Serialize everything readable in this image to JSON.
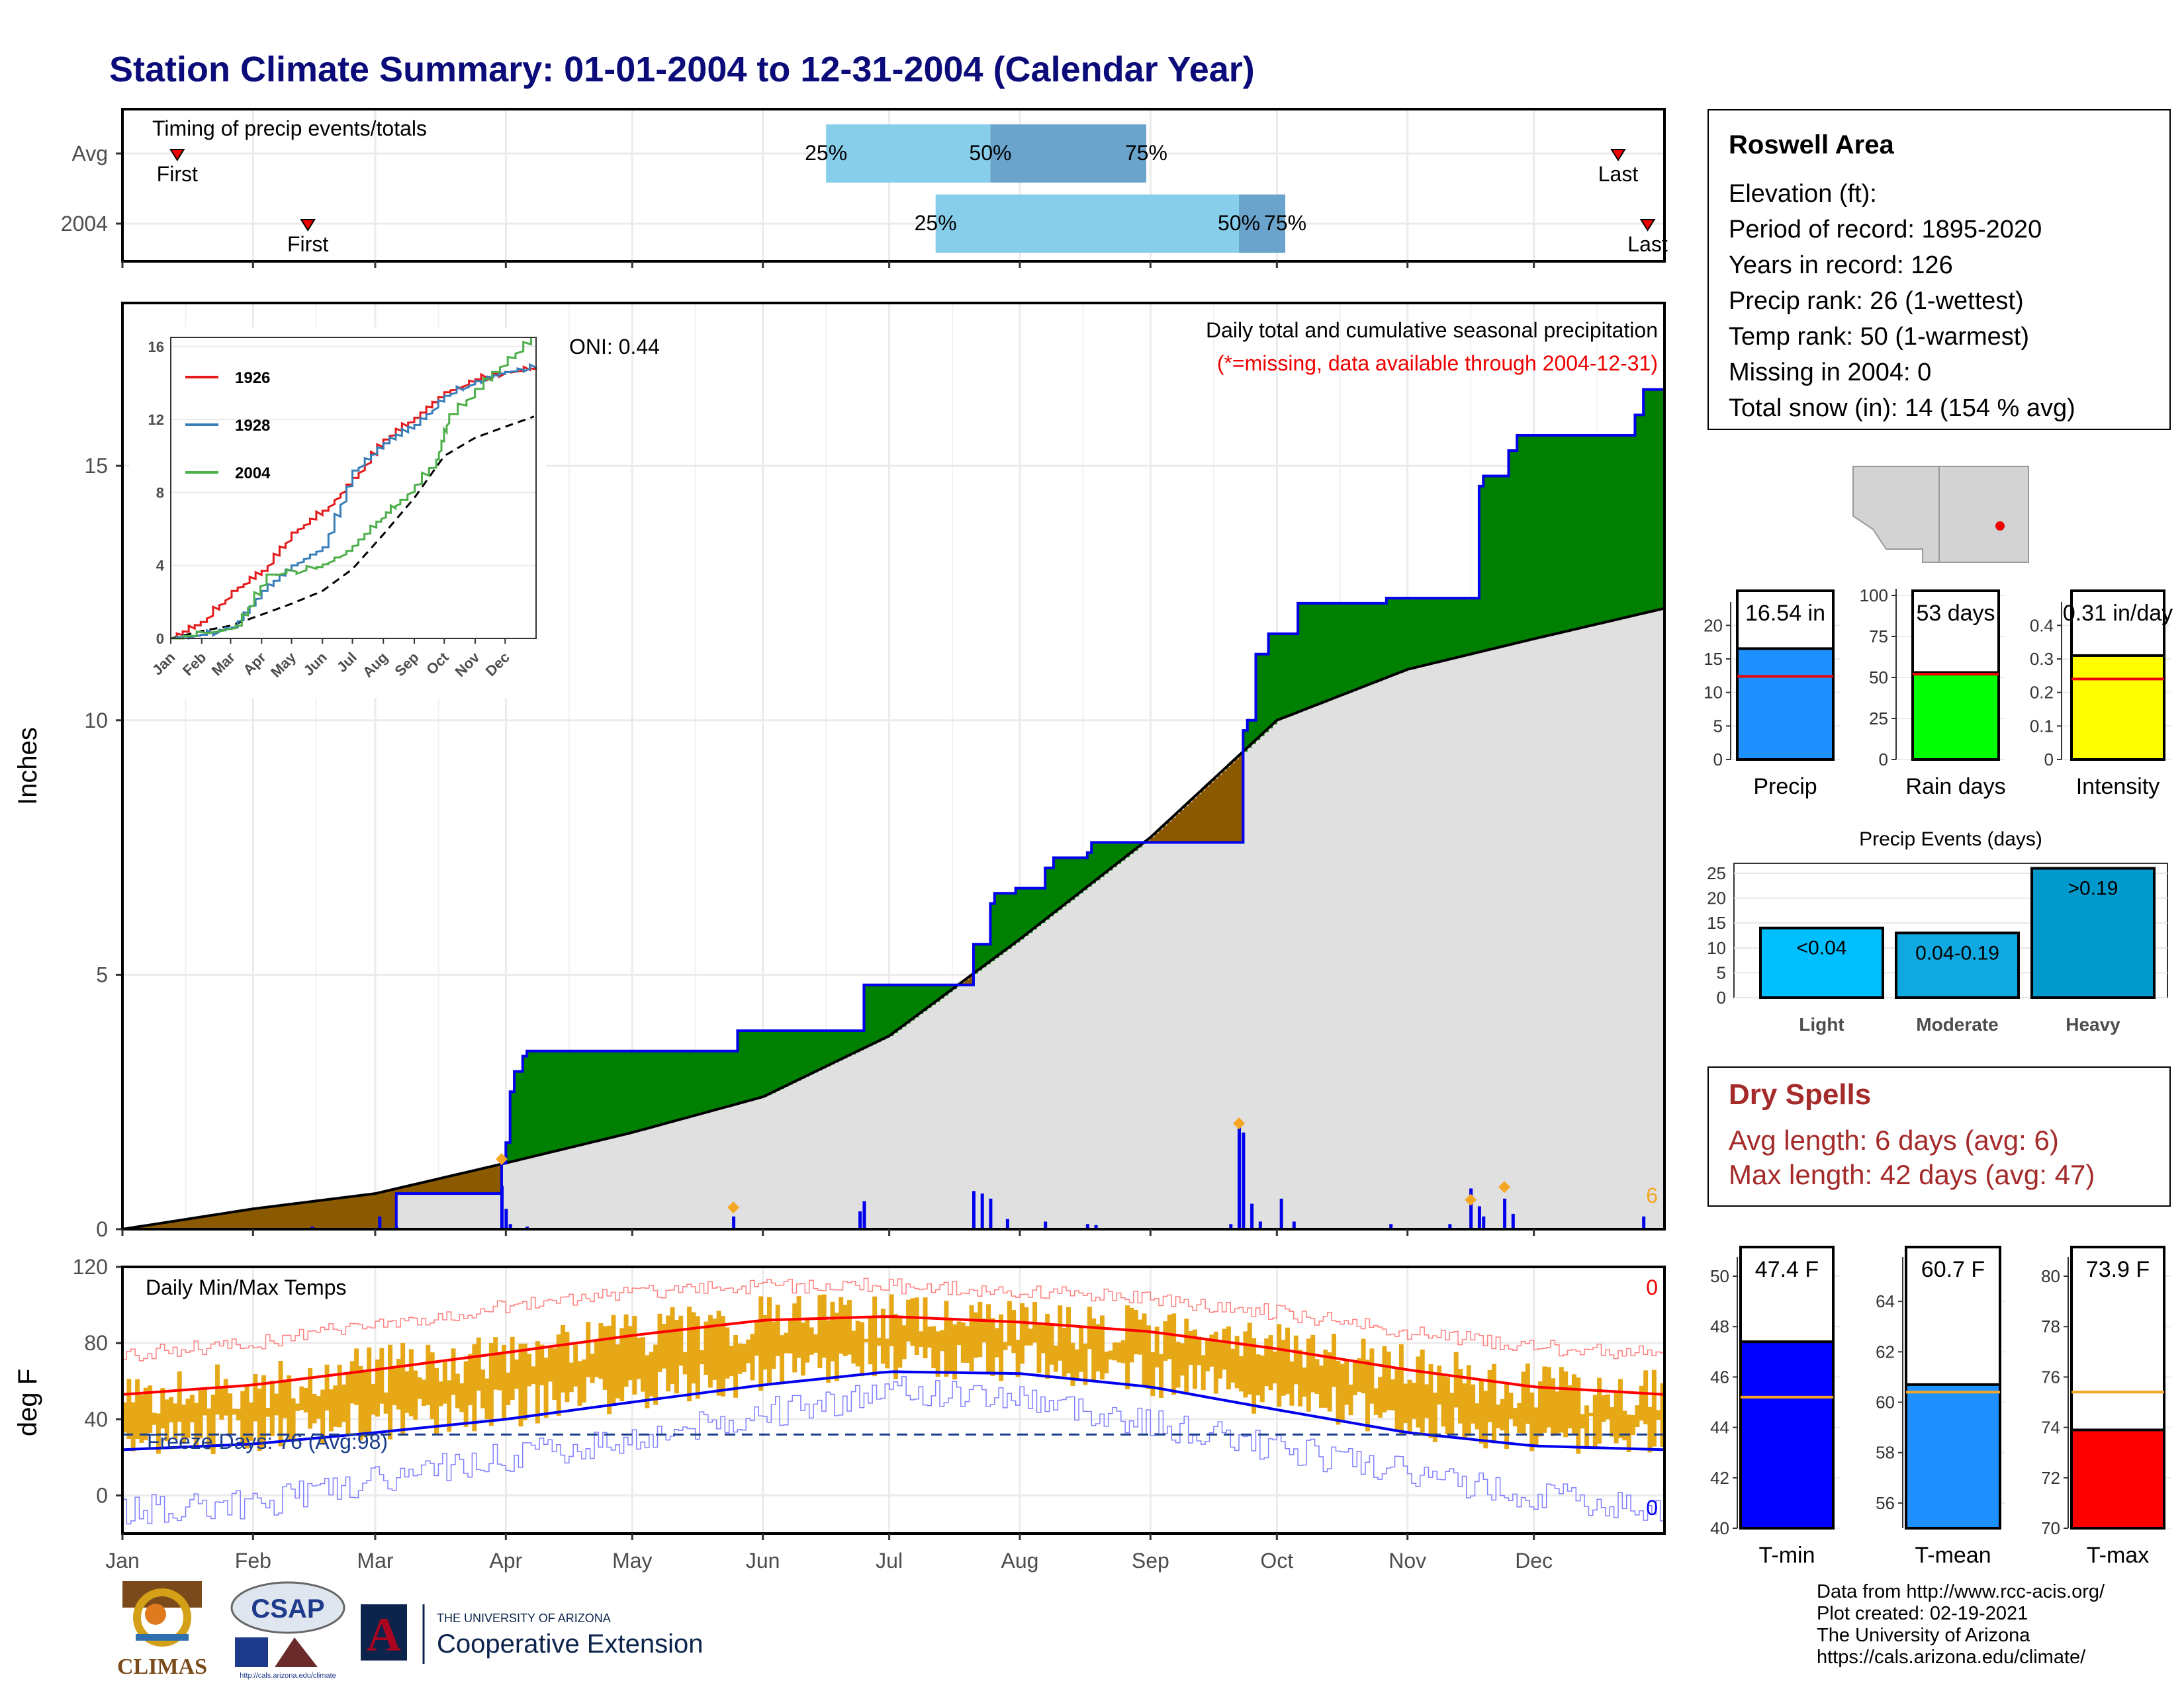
{
  "page_title": "Station Climate Summary: 01-01-2004 to 12-31-2004 (Calendar Year)",
  "colors": {
    "title": "#0b0b7a",
    "green": "#008000",
    "brown": "#8b5a00",
    "grey": "#e0e0e0",
    "blue": "#0000ee",
    "temp_bar": "#e6a817",
    "light_blue": "#87ceeb",
    "mid_blue": "#6aa3cc"
  },
  "timing": {
    "label": "Timing of precip events/totals",
    "rows": [
      {
        "name": "Avg",
        "first_doy": 13,
        "p25_doy": 167,
        "p50_doy": 206,
        "p75_doy": 243,
        "last_doy": 355
      },
      {
        "name": "2004",
        "first_doy": 44,
        "p25_doy": 193,
        "p50_doy": 265,
        "p75_doy": 276,
        "last_doy": 362
      }
    ],
    "labels": {
      "first": "First",
      "last": "Last",
      "p25": "25%",
      "p50": "50%",
      "p75": "75%"
    }
  },
  "months": [
    "Jan",
    "Feb",
    "Mar",
    "Apr",
    "May",
    "Jun",
    "Jul",
    "Aug",
    "Sep",
    "Oct",
    "Nov",
    "Dec"
  ],
  "precip_panel": {
    "title": "Daily total and cumulative seasonal precipitation",
    "subtitle": "(*=missing, data available through 2004-12-31)",
    "oni": "ONI: 0.44",
    "ylabel": "Inches",
    "count_label": "6"
  },
  "temp_panel": {
    "title": "Daily Min/Max Temps",
    "ylabel": "deg F",
    "freeze": "Freeze Days: 76 (Avg:98)",
    "max_count": "0",
    "min_count": "0"
  },
  "station": {
    "name": "Roswell Area",
    "lines": [
      "Elevation (ft):",
      "Period of record: 1895-2020",
      "Years in record: 126",
      "Precip rank: 26 (1-wettest)",
      "Temp rank: 50 (1-warmest)",
      "Missing in 2004: 0",
      "Total snow (in): 14 (154 % avg)"
    ]
  },
  "dry_spells": {
    "title": "Dry Spells",
    "avg": "Avg length: 6 days (avg: 6)",
    "max": "Max length: 42 days (avg: 47)"
  },
  "events_title": "Precip Events (days)",
  "footer": [
    "Data from http://www.rcc-acis.org/",
    "Plot created: 02-19-2021",
    "The University of Arizona",
    "https://cals.arizona.edu/climate/"
  ],
  "logos": {
    "climas": "CLIMAS",
    "csap": "CSAP",
    "ua_line1": "THE UNIVERSITY OF ARIZONA",
    "ua_line2": "Cooperative Extension",
    "csap_url": "http://cals.arizona.edu/climate"
  },
  "chart_data": [
    {
      "type": "area",
      "title": "Daily total and cumulative seasonal precipitation",
      "ylabel": "Inches",
      "ylim": [
        0,
        18.2
      ],
      "x_unit": "day of year",
      "cumulative_2004_steps": [
        [
          0,
          0
        ],
        [
          65,
          0.7
        ],
        [
          78,
          0.7
        ],
        [
          90,
          1.3
        ],
        [
          91,
          1.7
        ],
        [
          92,
          2.7
        ],
        [
          93,
          3.1
        ],
        [
          95,
          3.4
        ],
        [
          96,
          3.5
        ],
        [
          120,
          3.5
        ],
        [
          145,
          3.5
        ],
        [
          146,
          3.9
        ],
        [
          175,
          3.9
        ],
        [
          176,
          4.8
        ],
        [
          181,
          4.8
        ],
        [
          201,
          4.8
        ],
        [
          202,
          5.6
        ],
        [
          205,
          5.6
        ],
        [
          206,
          6.4
        ],
        [
          207,
          6.6
        ],
        [
          212,
          6.7
        ],
        [
          218,
          6.7
        ],
        [
          219,
          7.1
        ],
        [
          221,
          7.3
        ],
        [
          229,
          7.4
        ],
        [
          230,
          7.6
        ],
        [
          265,
          7.6
        ],
        [
          266,
          9.8
        ],
        [
          267,
          10.0
        ],
        [
          269,
          11.3
        ],
        [
          272,
          11.7
        ],
        [
          279,
          12.3
        ],
        [
          300,
          12.4
        ],
        [
          320,
          12.4
        ],
        [
          322,
          14.6
        ],
        [
          323,
          14.8
        ],
        [
          329,
          15.3
        ],
        [
          331,
          15.6
        ],
        [
          355,
          15.6
        ],
        [
          359,
          16.0
        ],
        [
          361,
          16.5
        ],
        [
          366,
          16.5
        ]
      ],
      "average_cumulative": [
        [
          0,
          0
        ],
        [
          31,
          0.4
        ],
        [
          60,
          0.7
        ],
        [
          91,
          1.3
        ],
        [
          121,
          1.9
        ],
        [
          152,
          2.6
        ],
        [
          182,
          3.8
        ],
        [
          213,
          5.7
        ],
        [
          244,
          7.7
        ],
        [
          274,
          10.0
        ],
        [
          305,
          11.0
        ],
        [
          335,
          11.6
        ],
        [
          366,
          12.2
        ]
      ],
      "daily_precip": [
        [
          45,
          0.05
        ],
        [
          61,
          0.25
        ],
        [
          65,
          0.05
        ],
        [
          90,
          0.85
        ],
        [
          91,
          0.4
        ],
        [
          92,
          0.1
        ],
        [
          96,
          0.05
        ],
        [
          145,
          0.25
        ],
        [
          175,
          0.35
        ],
        [
          176,
          0.55
        ],
        [
          185,
          0.02
        ],
        [
          202,
          0.75
        ],
        [
          204,
          0.7
        ],
        [
          206,
          0.6
        ],
        [
          210,
          0.2
        ],
        [
          219,
          0.15
        ],
        [
          229,
          0.1
        ],
        [
          231,
          0.08
        ],
        [
          263,
          0.1
        ],
        [
          265,
          2.0
        ],
        [
          266,
          1.9
        ],
        [
          268,
          0.5
        ],
        [
          270,
          0.15
        ],
        [
          275,
          0.6
        ],
        [
          278,
          0.15
        ],
        [
          301,
          0.1
        ],
        [
          315,
          0.1
        ],
        [
          320,
          0.8
        ],
        [
          322,
          0.45
        ],
        [
          323,
          0.25
        ],
        [
          328,
          0.6
        ],
        [
          330,
          0.3
        ],
        [
          361,
          0.25
        ]
      ],
      "ONI": 0.44
    },
    {
      "type": "line",
      "title": "",
      "series": [
        {
          "name": "1926",
          "color": "#e41a1c",
          "values": [
            [
              0,
              0
            ],
            [
              30,
              0.9
            ],
            [
              61,
              2.6
            ],
            [
              91,
              3.7
            ],
            [
              121,
              5.8
            ],
            [
              152,
              7.0
            ],
            [
              182,
              8.8
            ],
            [
              213,
              10.9
            ],
            [
              244,
              12.1
            ],
            [
              274,
              13.5
            ],
            [
              305,
              14.2
            ],
            [
              335,
              14.6
            ],
            [
              366,
              14.8
            ]
          ]
        },
        {
          "name": "1928",
          "color": "#377eb8",
          "values": [
            [
              0,
              0
            ],
            [
              30,
              0.2
            ],
            [
              61,
              0.6
            ],
            [
              91,
              2.6
            ],
            [
              121,
              4.0
            ],
            [
              152,
              5.0
            ],
            [
              182,
              9.2
            ],
            [
              213,
              10.7
            ],
            [
              244,
              11.7
            ],
            [
              274,
              13.3
            ],
            [
              305,
              14.1
            ],
            [
              335,
              14.6
            ],
            [
              366,
              14.9
            ]
          ]
        },
        {
          "name": "2004",
          "color": "#4daf4a",
          "values": [
            [
              0,
              0
            ],
            [
              65,
              0.7
            ],
            [
              96,
              3.5
            ],
            [
              146,
              3.9
            ],
            [
              176,
              4.8
            ],
            [
              206,
              6.4
            ],
            [
              230,
              7.6
            ],
            [
              266,
              9.8
            ],
            [
              279,
              12.3
            ],
            [
              322,
              14.6
            ],
            [
              361,
              16.5
            ]
          ]
        }
      ],
      "xticks": [
        "Jan",
        "Feb",
        "Mar",
        "Apr",
        "May",
        "Jun",
        "Jul",
        "Aug",
        "Sep",
        "Oct",
        "Nov",
        "Dec"
      ],
      "ylim": [
        0,
        16.5
      ],
      "yticks": [
        0,
        4,
        8,
        12,
        16
      ]
    },
    {
      "type": "bar",
      "title": "",
      "panels": [
        {
          "category": "Precip",
          "value": 16.54,
          "label": "16.54 in",
          "avg": 12.4,
          "ylim": [
            0,
            22.5
          ],
          "yticks": [
            0,
            5,
            10,
            15,
            20
          ],
          "color": "#1e90ff"
        },
        {
          "category": "Rain days",
          "value": 53,
          "label": "53 days",
          "avg": 52,
          "ylim": [
            0,
            100
          ],
          "yticks": [
            0,
            25,
            50,
            75,
            100
          ],
          "color": "#00ff00"
        },
        {
          "category": "Intensity",
          "value": 0.31,
          "label": "0.31 in/day",
          "avg": 0.24,
          "ylim": [
            0,
            0.45
          ],
          "yticks": [
            0,
            0.1,
            0.2,
            0.3,
            0.4
          ],
          "color": "#ffff00"
        }
      ]
    },
    {
      "type": "bar",
      "title": "Precip Events (days)",
      "categories": [
        "Light",
        "Moderate",
        "Heavy"
      ],
      "bar_labels": [
        "<0.04",
        "0.04-0.19",
        ">0.19"
      ],
      "values": [
        14,
        13,
        26
      ],
      "ylim": [
        0,
        27
      ],
      "yticks": [
        0,
        5,
        10,
        15,
        20,
        25
      ]
    },
    {
      "type": "line",
      "title": "Daily Min/Max Temps",
      "ylabel": "deg F",
      "ylim": [
        -20,
        120
      ],
      "yticks": [
        0,
        40,
        80,
        120
      ],
      "freeze_line": 32,
      "avg_max": [
        [
          0,
          53
        ],
        [
          31,
          58
        ],
        [
          60,
          66
        ],
        [
          91,
          75
        ],
        [
          121,
          84
        ],
        [
          152,
          92
        ],
        [
          182,
          94
        ],
        [
          213,
          91
        ],
        [
          244,
          86
        ],
        [
          274,
          77
        ],
        [
          305,
          66
        ],
        [
          335,
          57
        ],
        [
          366,
          53
        ]
      ],
      "avg_min": [
        [
          0,
          24
        ],
        [
          31,
          27
        ],
        [
          60,
          33
        ],
        [
          91,
          40
        ],
        [
          121,
          49
        ],
        [
          152,
          58
        ],
        [
          182,
          65
        ],
        [
          213,
          64
        ],
        [
          244,
          57
        ],
        [
          274,
          45
        ],
        [
          305,
          33
        ],
        [
          335,
          26
        ],
        [
          366,
          24
        ]
      ],
      "record_max": [
        [
          0,
          74
        ],
        [
          31,
          80
        ],
        [
          60,
          90
        ],
        [
          91,
          99
        ],
        [
          121,
          106
        ],
        [
          152,
          110
        ],
        [
          182,
          110
        ],
        [
          213,
          107
        ],
        [
          244,
          103
        ],
        [
          274,
          96
        ],
        [
          305,
          86
        ],
        [
          335,
          78
        ],
        [
          366,
          74
        ]
      ],
      "record_min": [
        [
          0,
          -8
        ],
        [
          31,
          -5
        ],
        [
          60,
          8
        ],
        [
          91,
          20
        ],
        [
          121,
          30
        ],
        [
          152,
          43
        ],
        [
          182,
          55
        ],
        [
          213,
          52
        ],
        [
          244,
          38
        ],
        [
          274,
          25
        ],
        [
          305,
          12
        ],
        [
          335,
          0
        ],
        [
          366,
          -8
        ]
      ]
    },
    {
      "type": "bar",
      "title": "",
      "panels": [
        {
          "category": "T-min",
          "value": 47.4,
          "label": "47.4 F",
          "avg": 45.2,
          "ylim": [
            40,
            50.5
          ],
          "yticks": [
            40,
            42,
            44,
            46,
            48,
            50
          ],
          "color": "#0000ff"
        },
        {
          "category": "T-mean",
          "value": 60.7,
          "label": "60.7 F",
          "avg": 60.4,
          "ylim": [
            55,
            65.5
          ],
          "yticks": [
            56,
            58,
            60,
            62,
            64
          ],
          "color": "#1e90ff"
        },
        {
          "category": "T-max",
          "value": 73.9,
          "label": "73.9 F",
          "avg": 75.4,
          "ylim": [
            70,
            80.5
          ],
          "yticks": [
            70,
            72,
            74,
            76,
            78,
            80
          ],
          "color": "#ff0000"
        }
      ]
    }
  ]
}
